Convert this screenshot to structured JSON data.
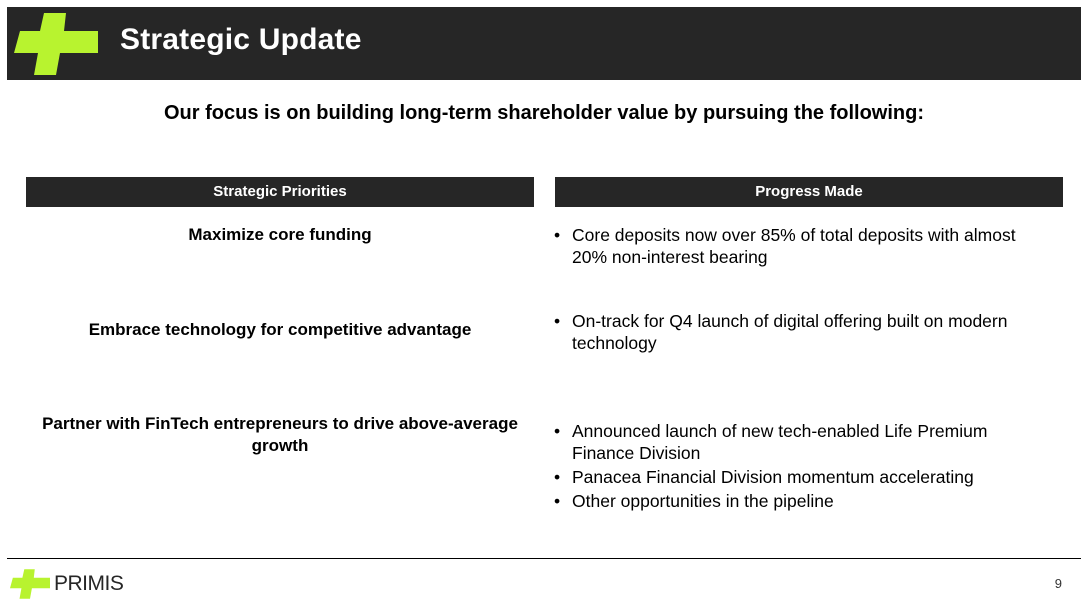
{
  "header": {
    "title": "Strategic Update"
  },
  "subtitle": "Our focus is on building long-term shareholder value by pursuing the following:",
  "table": {
    "columns": [
      "Strategic Priorities",
      "Progress Made"
    ],
    "rows": [
      {
        "priority": "Maximize core funding",
        "progress": [
          "Core deposits now over 85% of total deposits with almost 20% non-interest bearing"
        ]
      },
      {
        "priority": "Embrace technology for competitive advantage",
        "progress": [
          "On-track for Q4 launch of digital offering built on modern technology"
        ]
      },
      {
        "priority": "Partner with FinTech entrepreneurs to drive above-average growth",
        "progress": [
          "Announced launch of new tech-enabled Life Premium Finance Division",
          "Panacea Financial Division momentum accelerating",
          "Other opportunities in the pipeline"
        ]
      }
    ]
  },
  "footer": {
    "brand": "PRIMIS",
    "page_number": "9"
  },
  "colors": {
    "accent": "#b8f32f",
    "dark": "#262626"
  },
  "icons": {
    "logo": "primis-plus-logo-icon"
  }
}
